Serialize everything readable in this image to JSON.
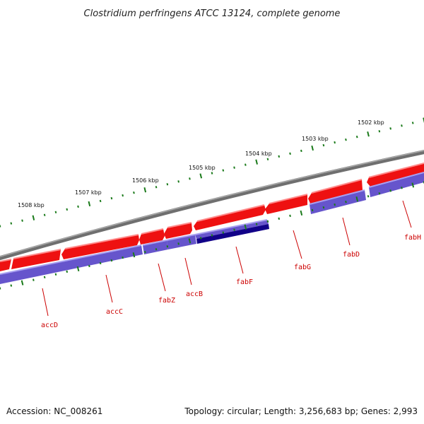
{
  "title": "Clostridium perfringens ATCC 13124, complete genome",
  "accession": "Accession: NC_008261",
  "summary": "Topology: circular; Length: 3,256,683 bp; Genes: 2,993",
  "ticks": [
    {
      "label": "1502 kbp"
    },
    {
      "label": "1503 kbp"
    },
    {
      "label": "1504 kbp"
    },
    {
      "label": "1505 kbp"
    },
    {
      "label": "1506 kbp"
    },
    {
      "label": "1507 kbp"
    },
    {
      "label": "1508 kbp"
    }
  ],
  "genes": [
    {
      "name": "fabH"
    },
    {
      "name": "fabD"
    },
    {
      "name": "fabG"
    },
    {
      "name": "fabF"
    },
    {
      "name": "accB"
    },
    {
      "name": "fabZ"
    },
    {
      "name": "accC"
    },
    {
      "name": "accD"
    }
  ],
  "colors": {
    "backbone": "#808080",
    "cds_forward": "#ee1111",
    "cds_function": "#6655cc",
    "cds_highlight": "#110088",
    "ticks": "#1a7a1a",
    "label": "#cc0000"
  }
}
